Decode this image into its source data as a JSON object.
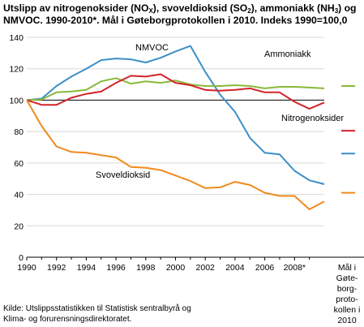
{
  "title": {
    "part1": "Utslipp av nitrogenoksider (NO",
    "sub1": "X",
    "part2": "), svoveldioksid (SO",
    "sub2": "2",
    "part3": "), ammoniakk (NH",
    "sub3": "3",
    "part4": ") og NMVOC. 1990-2010*. Mål i Gøteborgprotokollen i 2010. Indeks 1990=100,0"
  },
  "source": {
    "line1": "Kilde: Utslippsstatistikken til Statistisk sentralbyrå og",
    "line2": "Klima- og forurensningsdirektoratet."
  },
  "chart_data": {
    "type": "line",
    "x": [
      1990,
      1991,
      1992,
      1993,
      1994,
      1995,
      1996,
      1997,
      1998,
      1999,
      2000,
      2001,
      2002,
      2003,
      2004,
      2005,
      2006,
      2007,
      2008,
      2009,
      2010
    ],
    "xlim": [
      1990,
      2010
    ],
    "ylim": [
      0,
      140
    ],
    "yticks": [
      0,
      20,
      40,
      60,
      80,
      100,
      120,
      140
    ],
    "xticks": [
      "1990",
      "1992",
      "1994",
      "1996",
      "1998",
      "2000",
      "2002",
      "2004",
      "2006",
      "2008*"
    ],
    "target_column_label": [
      "Mål i",
      "Gøte-",
      "borg-",
      "proto-",
      "kollen i",
      "2010"
    ],
    "grid": true,
    "reference_line": 100,
    "series": [
      {
        "name": "NMVOC",
        "color": "#3c8fc9",
        "values": [
          100,
          101,
          109,
          115,
          120,
          125.5,
          126.5,
          126,
          124,
          127,
          131,
          134.5,
          118,
          103.5,
          92.5,
          76,
          66.5,
          65.5,
          55,
          49,
          46.5
        ],
        "target": 66
      },
      {
        "name": "Ammoniakk",
        "color": "#88b93a",
        "values": [
          100,
          100.5,
          105,
          105.5,
          106.5,
          112,
          114,
          110.5,
          112,
          111,
          112.5,
          110,
          109,
          109,
          109.5,
          109,
          107.5,
          108.5,
          108.5,
          108,
          107.5
        ],
        "target": 109
      },
      {
        "name": "Nitrogenoksider",
        "color": "#d2232a",
        "values": [
          100,
          97,
          97,
          101.5,
          104,
          105.5,
          111,
          115.5,
          115,
          116.5,
          111,
          109.5,
          106.5,
          106,
          106.5,
          107.5,
          105,
          105,
          99,
          94.5,
          98.5
        ],
        "target": 80.5
      },
      {
        "name": "Svoveldioksid",
        "color": "#f08a1d",
        "values": [
          100,
          83.5,
          70.5,
          67,
          66.5,
          65,
          63.5,
          57.5,
          57,
          55.5,
          52,
          48.5,
          44,
          44.5,
          48,
          46,
          41,
          39,
          39,
          30.5,
          35.5
        ],
        "target": 41
      }
    ]
  }
}
